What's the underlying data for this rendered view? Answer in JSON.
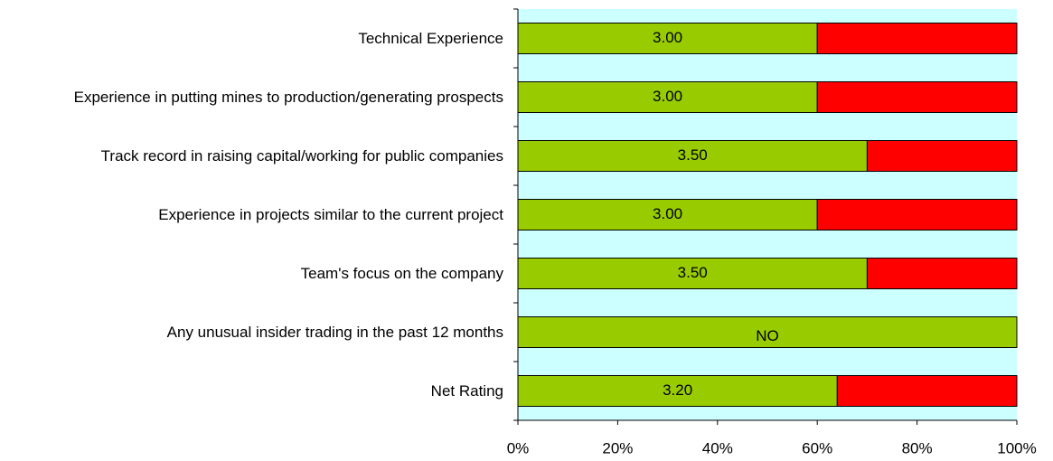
{
  "chart_data": {
    "type": "stacked-bar",
    "orientation": "horizontal",
    "categories": [
      "Technical Experience",
      "Experience in putting mines to production/generating prospects",
      "Track record in raising capital/working for public companies",
      "Experience in projects similar to the current project",
      "Team's focus on the company",
      "Any unusual insider trading in the past 12 months",
      "Net Rating"
    ],
    "series": [
      {
        "name": "Score",
        "color": "#99cc00",
        "values": [
          60,
          60,
          70,
          60,
          70,
          100,
          64
        ]
      },
      {
        "name": "Remainder",
        "color": "#ff0000",
        "values": [
          40,
          40,
          30,
          40,
          30,
          0,
          36
        ]
      }
    ],
    "annotations": [
      "3.00",
      "3.00",
      "3.50",
      "3.00",
      "3.50",
      "NO",
      "3.20"
    ],
    "xlim": [
      0,
      100
    ],
    "xticks": [
      {
        "value": 0,
        "label": "0%"
      },
      {
        "value": 20,
        "label": "20%"
      },
      {
        "value": 40,
        "label": "40%"
      },
      {
        "value": 60,
        "label": "60%"
      },
      {
        "value": 80,
        "label": "80%"
      },
      {
        "value": 100,
        "label": "100%"
      }
    ],
    "plot_background": "#ccffff"
  }
}
